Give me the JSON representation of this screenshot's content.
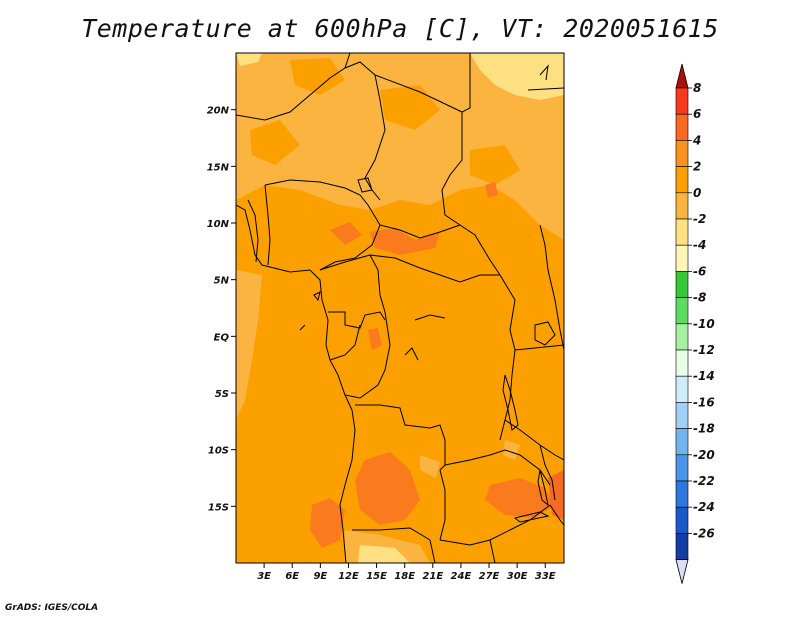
{
  "title": "Temperature at 600hPa [C], VT: 2020051615",
  "credit": "GrADS: IGES/COLA",
  "map": {
    "lon_range": [
      0,
      35
    ],
    "lat_range": [
      -20,
      25
    ],
    "x_ticks": [
      "3E",
      "6E",
      "9E",
      "12E",
      "15E",
      "18E",
      "21E",
      "24E",
      "27E",
      "30E",
      "33E"
    ],
    "y_ticks": [
      "20N",
      "15N",
      "10N",
      "5N",
      "EQ",
      "5S",
      "10S",
      "15S"
    ],
    "colors": {
      "field_base": "#fca000",
      "field_warm": "#fa7a1e",
      "field_cool": "#fbb440",
      "field_coolest": "#fde082",
      "borders": "#000000"
    }
  },
  "colorbar": {
    "labels": [
      "8",
      "6",
      "4",
      "2",
      "0",
      "-2",
      "-4",
      "-6",
      "-8",
      "-10",
      "-12",
      "-14",
      "-16",
      "-18",
      "-20",
      "-22",
      "-24",
      "-26"
    ],
    "colors": [
      "#f73a19",
      "#f66a21",
      "#fb9220",
      "#fca000",
      "#fbb440",
      "#fde082",
      "#fdf6b4",
      "#37c837",
      "#5fdc5f",
      "#a6f0a0",
      "#e6ffe6",
      "#cfecfa",
      "#a0d0f5",
      "#72b4f0",
      "#4a96e8",
      "#2c78dd",
      "#1a5ac8",
      "#123ea6",
      "#0a1f78"
    ],
    "top_arrow": "#b40c0c",
    "bottom_arrow": "#dcdcf5"
  }
}
